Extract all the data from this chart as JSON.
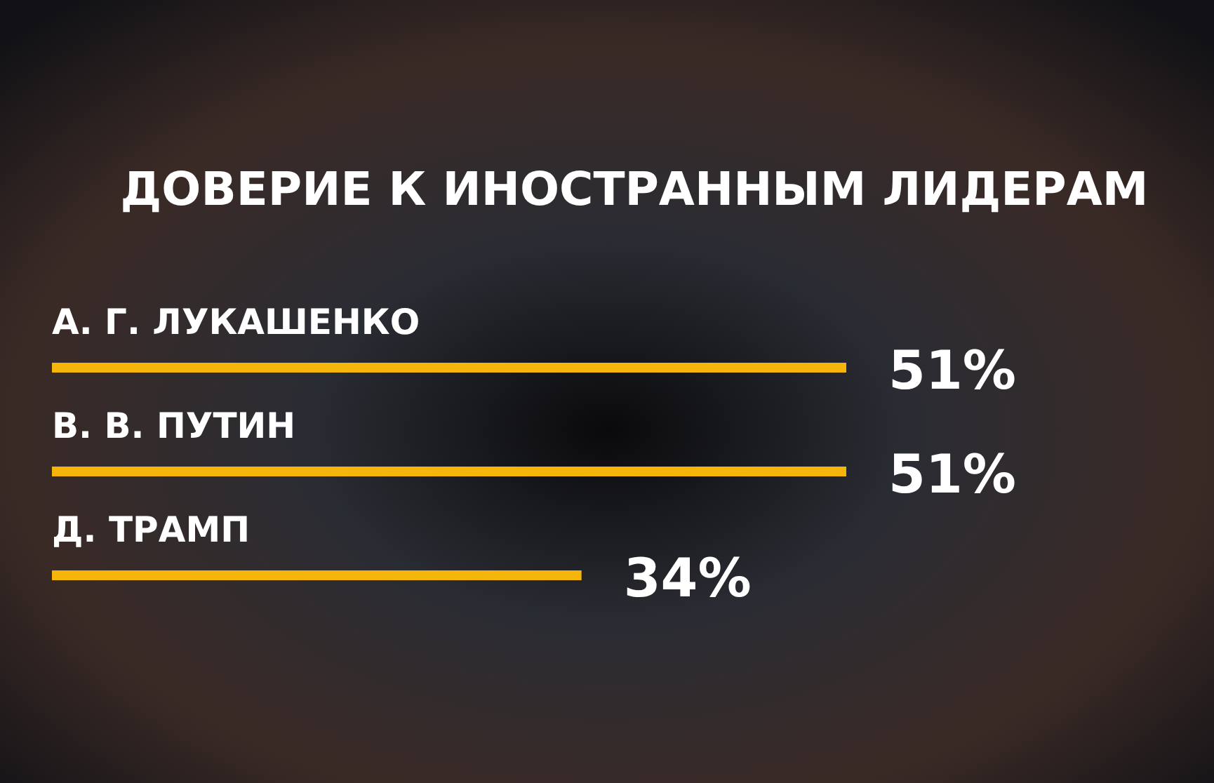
{
  "chart_data": {
    "type": "bar",
    "orientation": "horizontal",
    "title": "ДОВЕРИЕ К ИНОСТРАННЫМ ЛИДЕРАМ",
    "categories": [
      "А. Г. ЛУКАШЕНКО",
      "В. В. ПУТИН",
      "Д. ТРАМП"
    ],
    "values": [
      51,
      51,
      34
    ],
    "value_labels": [
      "51%",
      "51%",
      "34%"
    ],
    "color": "#f5b50a"
  }
}
